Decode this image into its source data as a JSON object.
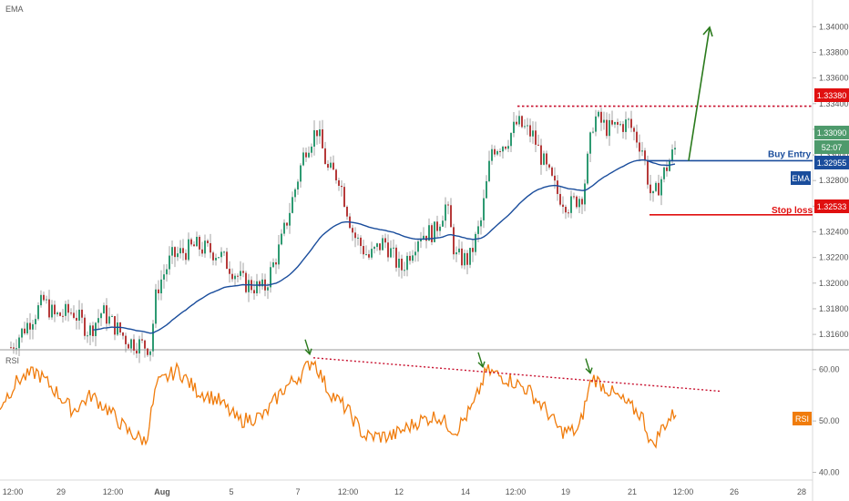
{
  "colors": {
    "up_candle": "#2e9a72",
    "down_candle": "#b63a3a",
    "wick": "#8c8c8c",
    "ema": "#1a4d9c",
    "rsi": "#f07c0c",
    "resistance": "#c8102e",
    "stop": "#e01010",
    "entry": "#1a4d9c",
    "arrow": "#2a7a1c",
    "price_green": "#4e9a6c",
    "price_blue": "#1a4d9c",
    "price_red": "#e01010"
  },
  "chart_data": [
    {
      "type": "candlestick",
      "indicator_label": "EMA",
      "y_ticks": [
        "1.34000",
        "1.33800",
        "1.33600",
        "1.33400",
        "1.33200",
        "1.33000",
        "1.32800",
        "1.32600",
        "1.32400",
        "1.32200",
        "1.32000",
        "1.31800",
        "1.31600"
      ],
      "ylim": [
        1.3148,
        1.3418
      ],
      "levels": {
        "resistance": 1.3338,
        "buy_entry": 1.32955,
        "stop_loss": 1.32533
      },
      "series": [
        {
          "name": "EMA",
          "values_desc": "moving average under price"
        }
      ],
      "annotations": {
        "buy_entry_label": "Buy Entry",
        "stop_loss_label": "Stop loss",
        "ema_tag": "EMA",
        "resistance_price": "1.33380",
        "last_price": "1.33090",
        "countdown": "52:07",
        "entry_price": "1.32955",
        "stop_price": "1.32533"
      }
    },
    {
      "type": "line",
      "indicator_label": "RSI",
      "y_ticks": [
        "60.00",
        "50.00",
        "40.00"
      ],
      "ylim": [
        38.5,
        63.5
      ],
      "annotations": {
        "rsi_tag": "RSI"
      },
      "divergence_peaks": [
        62.3,
        59.8,
        58.6
      ]
    }
  ],
  "x_axis": {
    "ticks": [
      "12:00",
      "29",
      "12:00",
      "Aug",
      "5",
      "7",
      "12:00",
      "12",
      "14",
      "12:00",
      "19",
      "21",
      "12:00",
      "26",
      "28"
    ]
  }
}
